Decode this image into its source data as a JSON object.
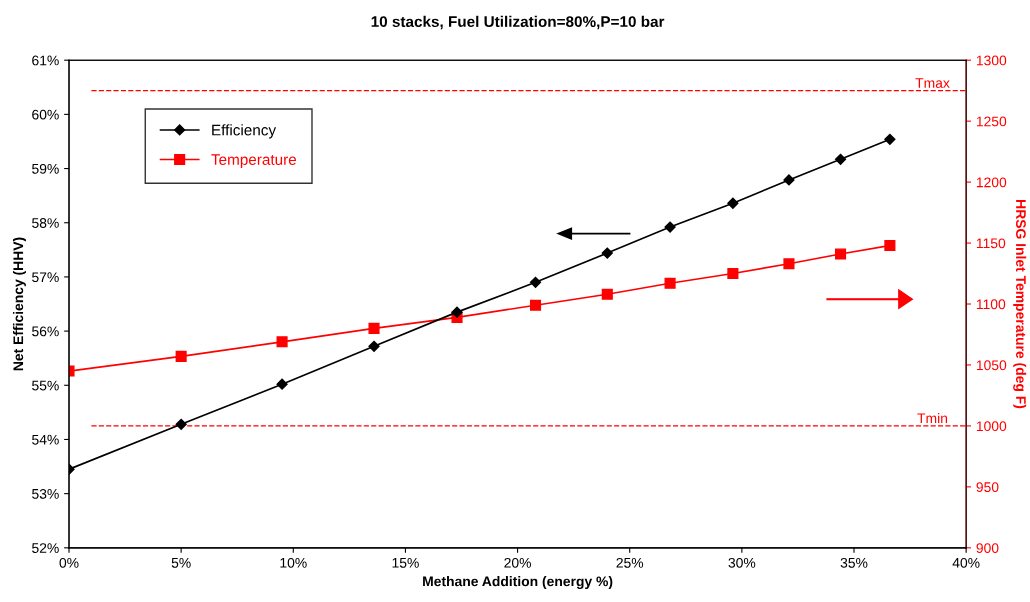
{
  "chart_data": {
    "type": "line",
    "title": "10 stacks, Fuel Utilization=80%,P=10 bar",
    "xlabel": "Methane Addition (energy %)",
    "ylabel": "Net Efficiency (HHV)",
    "y2label": "HRSG Inlet Temperature (deg F)",
    "x": [
      0,
      5.0,
      9.5,
      13.6,
      17.3,
      20.8,
      24.0,
      26.8,
      29.6,
      32.1,
      34.4,
      36.6
    ],
    "series": [
      {
        "name": "Efficiency",
        "color": "#000000",
        "marker": "diamond",
        "values": [
          53.45,
          54.28,
          55.02,
          55.72,
          56.35,
          56.9,
          57.44,
          57.92,
          58.36,
          58.79,
          59.17,
          59.54
        ]
      },
      {
        "name": "Temperature",
        "color": "#ff0000",
        "marker": "square",
        "axis": "y2",
        "values": [
          1045,
          1057,
          1069,
          1080,
          1089,
          1099,
          1108,
          1117,
          1125,
          1133,
          1141,
          1148
        ]
      }
    ],
    "xlim": [
      0,
      40
    ],
    "xticks": [
      {
        "value": 0,
        "label": "0%"
      },
      {
        "value": 5,
        "label": "5%"
      },
      {
        "value": 10,
        "label": "10%"
      },
      {
        "value": 15,
        "label": "15%"
      },
      {
        "value": 20,
        "label": "20%"
      },
      {
        "value": 25,
        "label": "25%"
      },
      {
        "value": 30,
        "label": "30%"
      },
      {
        "value": 35,
        "label": "35%"
      },
      {
        "value": 40,
        "label": "40%"
      }
    ],
    "ylim": [
      52,
      61
    ],
    "yticks": [
      {
        "value": 52,
        "label": "52%"
      },
      {
        "value": 53,
        "label": "53%"
      },
      {
        "value": 54,
        "label": "54%"
      },
      {
        "value": 55,
        "label": "55%"
      },
      {
        "value": 56,
        "label": "56%"
      },
      {
        "value": 57,
        "label": "57%"
      },
      {
        "value": 58,
        "label": "58%"
      },
      {
        "value": 59,
        "label": "59%"
      },
      {
        "value": 60,
        "label": "60%"
      },
      {
        "value": 61,
        "label": "61%"
      }
    ],
    "y2lim": [
      900,
      1300
    ],
    "y2ticks": [
      900,
      950,
      1000,
      1050,
      1100,
      1150,
      1200,
      1250,
      1300
    ],
    "ref_lines": [
      {
        "axis": "y2",
        "value": 1275,
        "label": "Tmax",
        "color": "#ff0000",
        "line_style": "dashed"
      },
      {
        "axis": "y2",
        "value": 1000,
        "label": "Tmin",
        "color": "#ff0000",
        "line_style": "dashed"
      }
    ],
    "grid": false,
    "legend": "top left",
    "line_style": "solid"
  }
}
